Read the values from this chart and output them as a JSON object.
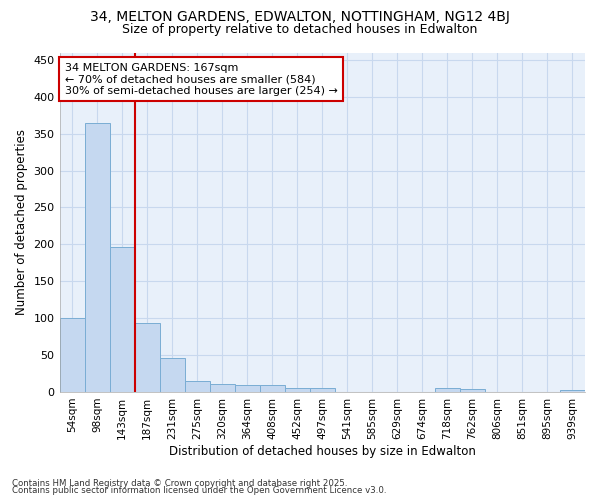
{
  "title": "34, MELTON GARDENS, EDWALTON, NOTTINGHAM, NG12 4BJ",
  "subtitle": "Size of property relative to detached houses in Edwalton",
  "xlabel": "Distribution of detached houses by size in Edwalton",
  "ylabel": "Number of detached properties",
  "footnote1": "Contains HM Land Registry data © Crown copyright and database right 2025.",
  "footnote2": "Contains public sector information licensed under the Open Government Licence v3.0.",
  "bar_labels": [
    "54sqm",
    "98sqm",
    "143sqm",
    "187sqm",
    "231sqm",
    "275sqm",
    "320sqm",
    "364sqm",
    "408sqm",
    "452sqm",
    "497sqm",
    "541sqm",
    "585sqm",
    "629sqm",
    "674sqm",
    "718sqm",
    "762sqm",
    "806sqm",
    "851sqm",
    "895sqm",
    "939sqm"
  ],
  "bar_values": [
    100,
    365,
    196,
    93,
    46,
    15,
    11,
    9,
    9,
    6,
    5,
    0,
    0,
    0,
    0,
    5,
    4,
    0,
    0,
    0,
    3
  ],
  "bar_color": "#c5d8f0",
  "bar_edge_color": "#7aadd4",
  "grid_color": "#c8d8ee",
  "background_color": "#ffffff",
  "plot_bg_color": "#e8f0fa",
  "vline_x": 2.5,
  "vline_color": "#cc0000",
  "annotation_text": "34 MELTON GARDENS: 167sqm\n← 70% of detached houses are smaller (584)\n30% of semi-detached houses are larger (254) →",
  "annotation_box_color": "#ffffff",
  "annotation_box_edge": "#cc0000",
  "ylim": [
    0,
    460
  ],
  "yticks": [
    0,
    50,
    100,
    150,
    200,
    250,
    300,
    350,
    400,
    450
  ]
}
